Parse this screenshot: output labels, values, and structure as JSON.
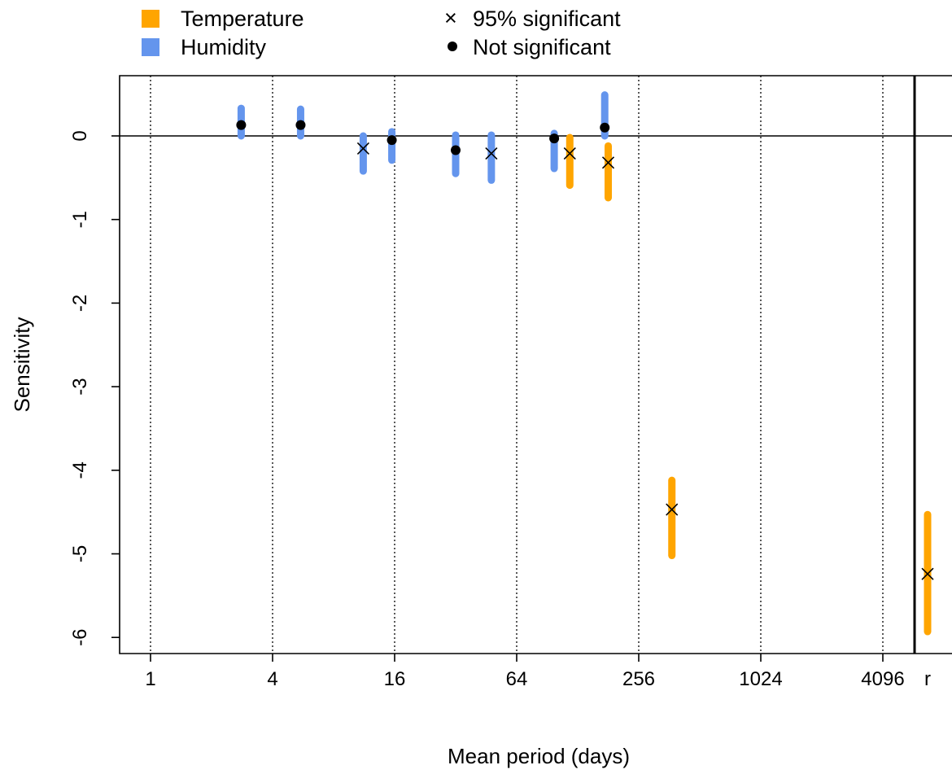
{
  "chart_data": {
    "type": "scatter",
    "xlabel": "Mean period (days)",
    "ylabel": "Sensitivity",
    "x_scale": "log2",
    "x_ticks": [
      "1",
      "4",
      "16",
      "64",
      "256",
      "1024",
      "4096",
      "r"
    ],
    "y_ticks": [
      "0",
      "-1",
      "-2",
      "-3",
      "-4",
      "-5",
      "-6"
    ],
    "ylim": [
      -6.2,
      0.72
    ],
    "grid": "vertical dotted lines at x ticks",
    "legend": {
      "placement": "top",
      "colors": [
        {
          "label": "Temperature",
          "color": "#FFA500"
        },
        {
          "label": "Humidity",
          "color": "#6495ED"
        }
      ],
      "markers": [
        {
          "label": "95% significant",
          "symbol": "×"
        },
        {
          "label": "Not significant",
          "symbol": "●"
        }
      ]
    },
    "series": [
      {
        "name": "Humidity",
        "color": "#6495ED",
        "points": [
          {
            "x": 2.8,
            "y": 0.13,
            "lo": 0.0,
            "hi": 0.33,
            "sig": false
          },
          {
            "x": 5.5,
            "y": 0.13,
            "lo": 0.0,
            "hi": 0.32,
            "sig": false
          },
          {
            "x": 11.2,
            "y": -0.15,
            "lo": -0.42,
            "hi": 0.0,
            "sig": true
          },
          {
            "x": 15.5,
            "y": -0.05,
            "lo": -0.29,
            "hi": 0.05,
            "sig": false
          },
          {
            "x": 32,
            "y": -0.17,
            "lo": -0.45,
            "hi": 0.01,
            "sig": false
          },
          {
            "x": 48,
            "y": -0.21,
            "lo": -0.53,
            "hi": 0.01,
            "sig": true
          },
          {
            "x": 98,
            "y": -0.03,
            "lo": -0.39,
            "hi": 0.03,
            "sig": false
          },
          {
            "x": 174,
            "y": 0.1,
            "lo": 0.0,
            "hi": 0.49,
            "sig": false
          }
        ]
      },
      {
        "name": "Temperature",
        "color": "#FFA500",
        "points": [
          {
            "x": 117,
            "y": -0.21,
            "lo": -0.59,
            "hi": -0.02,
            "sig": true
          },
          {
            "x": 181,
            "y": -0.32,
            "lo": -0.74,
            "hi": -0.12,
            "sig": true
          },
          {
            "x": 373,
            "y": -4.47,
            "lo": -5.02,
            "hi": -4.12,
            "sig": true
          },
          {
            "x": "r",
            "y": -5.24,
            "lo": -5.93,
            "hi": -4.53,
            "sig": true
          }
        ]
      }
    ]
  },
  "colors": {
    "temperature": "#FFA500",
    "humidity": "#6495ED",
    "axis": "#000000"
  }
}
